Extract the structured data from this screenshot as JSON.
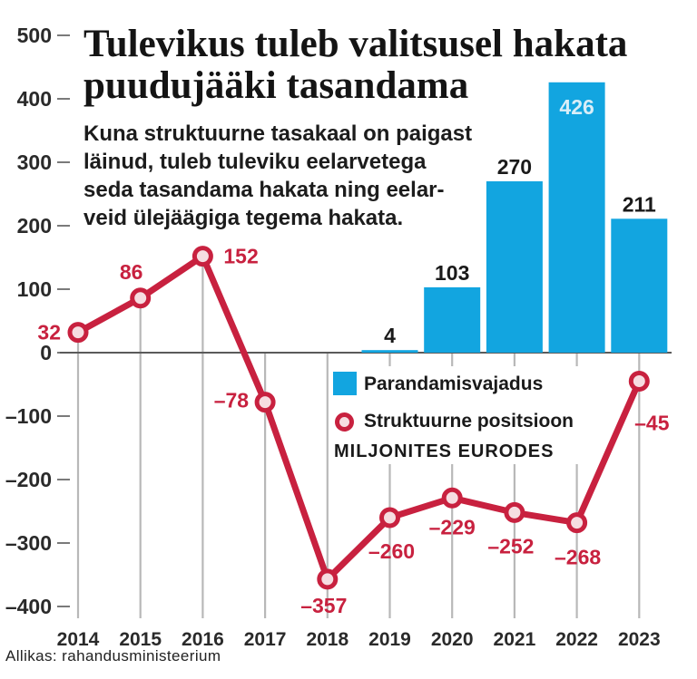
{
  "chart_data": {
    "type": "bar",
    "title_lines": [
      "Tulevikus tuleb valitsusel hakata",
      "puudujääki tasandama"
    ],
    "subtitle_lines": [
      "Kuna struktuurne tasakaal on paigast",
      "läinud, tuleb tuleviku eelarvetega",
      "seda tasandama hakata ning eelar-",
      "veid ülejäägiga tegema hakata."
    ],
    "categories": [
      "2014",
      "2015",
      "2016",
      "2017",
      "2018",
      "2019",
      "2020",
      "2021",
      "2022",
      "2023"
    ],
    "series": [
      {
        "name": "Parandamisvajadus",
        "type": "bar",
        "color": "#12a5e0",
        "values": [
          null,
          null,
          null,
          null,
          null,
          4,
          103,
          270,
          426,
          211
        ],
        "labels": [
          null,
          null,
          null,
          null,
          null,
          "4",
          "103",
          "270",
          "426",
          "211"
        ]
      },
      {
        "name": "Struktuurne positsioon",
        "type": "line",
        "color": "#c8213f",
        "marker_fill": "#f6dde1",
        "values": [
          32,
          86,
          152,
          -78,
          -357,
          -260,
          -229,
          -252,
          -268,
          -45
        ],
        "labels": [
          "32",
          "86",
          "152",
          "–78",
          "–357",
          "–260",
          "–229",
          "–252",
          "–268",
          "–45"
        ]
      }
    ],
    "y_ticks": [
      500,
      400,
      300,
      200,
      100,
      0,
      -100,
      -200,
      -300,
      -400
    ],
    "y_tick_labels": [
      "500",
      "400",
      "300",
      "200",
      "100",
      "0",
      "–100",
      "–200",
      "–300",
      "–400"
    ],
    "ylim": [
      -400,
      500
    ],
    "grid": true,
    "xlabel": "",
    "ylabel": "",
    "units_label": "MILJONITES EURODES",
    "source": "Allikas: rahandusministeerium"
  }
}
